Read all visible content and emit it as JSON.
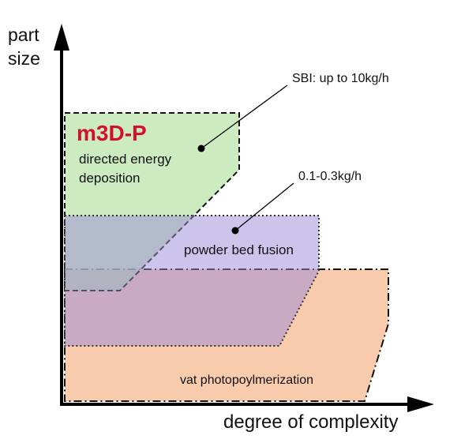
{
  "axes": {
    "y_label": [
      "part",
      "size"
    ],
    "x_label": "degree of complexity"
  },
  "regions": [
    {
      "label": [
        "directed energy",
        "deposition"
      ],
      "logo": "m3D-P"
    },
    {
      "label": [
        "powder bed fusion"
      ]
    },
    {
      "label": [
        "vat photopoylmerization"
      ]
    }
  ],
  "callouts": [
    "SBI: up to 10kg/h",
    "0.1-0.3kg/h"
  ]
}
